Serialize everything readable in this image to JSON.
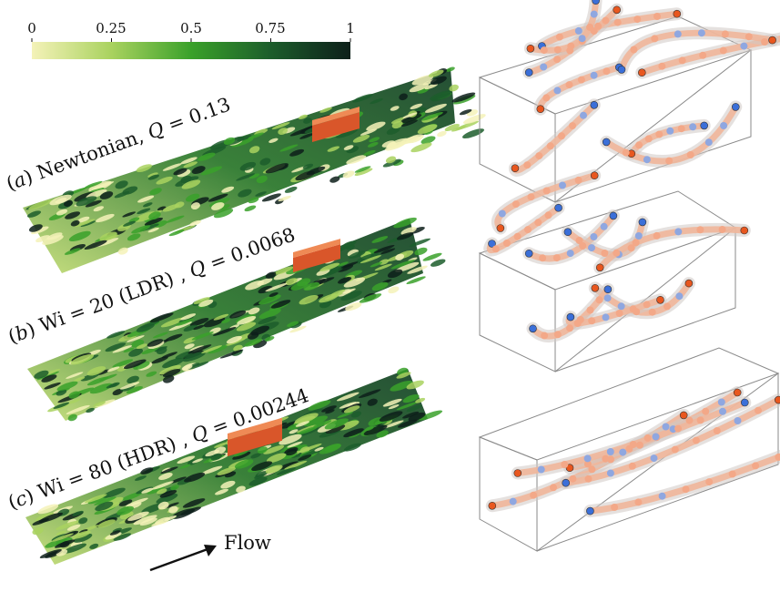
{
  "colorbar": {
    "ticks": [
      "0",
      "0.25",
      "0.5",
      "0.75",
      "1"
    ],
    "colors": [
      "#f4f2b8",
      "#a9d25f",
      "#3aa12a",
      "#1c5d2b",
      "#0d1f1a"
    ]
  },
  "panels": [
    {
      "letter": "a",
      "label": "Newtonian, ",
      "qvar": "Q",
      "qval": " = 0.13"
    },
    {
      "letter": "b",
      "label": "Wi = 20 (LDR) , ",
      "qvar": "Q",
      "qval": " = 0.0068"
    },
    {
      "letter": "c",
      "label": "Wi = 80 (HDR) , ",
      "qvar": "Q",
      "qval": " = 0.00244"
    }
  ],
  "flow_label": "Flow",
  "colors": {
    "particle_orange": "#e8571f",
    "particle_blue": "#3b6fd8",
    "tube_salmon": "#f0b69a",
    "box_orange": "#d9562a"
  }
}
